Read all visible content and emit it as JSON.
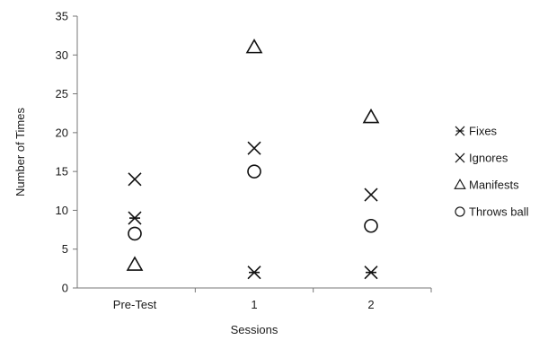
{
  "chart_data": {
    "type": "scatter",
    "categories": [
      "Pre-Test",
      "1",
      "2"
    ],
    "xlabel": "Sessions",
    "ylabel": "Number of Times",
    "ylim": [
      0,
      35
    ],
    "yticks": [
      0,
      5,
      10,
      15,
      20,
      25,
      30,
      35
    ],
    "grid": false,
    "legend_position": "right",
    "series": [
      {
        "name": "Fixes",
        "marker": "asterisk-icon",
        "values": [
          9,
          2,
          2
        ]
      },
      {
        "name": "Ignores",
        "marker": "cross-icon",
        "values": [
          14,
          18,
          12
        ]
      },
      {
        "name": "Manifests",
        "marker": "triangle-icon",
        "values": [
          3,
          31,
          22
        ]
      },
      {
        "name": "Throws ball",
        "marker": "circle-icon",
        "values": [
          7,
          15,
          8
        ]
      }
    ]
  }
}
